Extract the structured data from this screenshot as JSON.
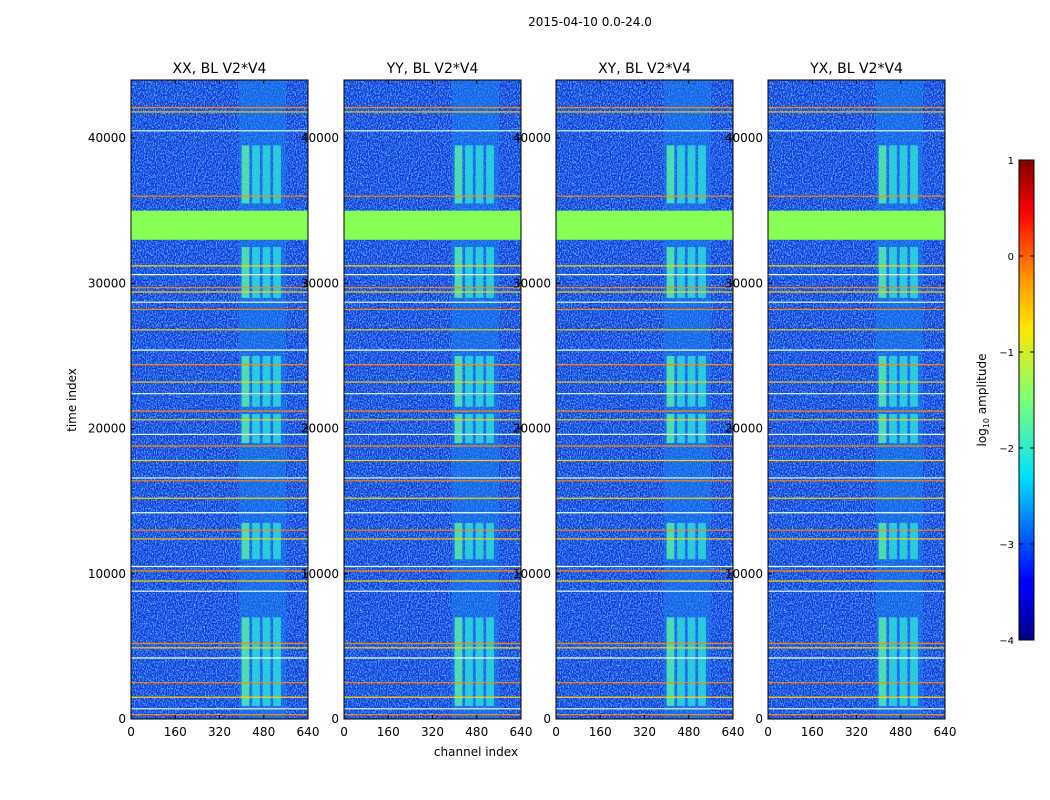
{
  "chart_data": {
    "type": "heatmap",
    "title": "2015-04-10 0.0-24.0",
    "xlabel": "channel index",
    "ylabel": "time index",
    "xlim": [
      0,
      640
    ],
    "ylim": [
      0,
      44000
    ],
    "xticks": [
      0,
      160,
      320,
      480,
      640
    ],
    "yticks": [
      0,
      10000,
      20000,
      30000,
      40000
    ],
    "xtick_labels": [
      "0",
      "160",
      "320",
      "480",
      "640"
    ],
    "ytick_labels": [
      "0",
      "10000",
      "20000",
      "30000",
      "40000"
    ],
    "panels": [
      {
        "title": "XX, BL V2*V4"
      },
      {
        "title": "YY, BL V2*V4"
      },
      {
        "title": "XY, BL V2*V4"
      },
      {
        "title": "YX, BL V2*V4"
      }
    ],
    "colorbar": {
      "label_main": "log",
      "label_sub": "10",
      "label_end": " amplitude",
      "range": [
        -4,
        1
      ],
      "ticks": [
        1,
        0,
        -1,
        -2,
        -3,
        -4
      ],
      "tick_labels": [
        "1",
        "0",
        "−1",
        "−2",
        "−3",
        "−4"
      ],
      "colormap": "jet"
    },
    "features": {
      "saturated_block_time": [
        33000,
        35000
      ],
      "bright_channel_range": [
        390,
        560
      ],
      "flagged_rows": [
        300,
        700,
        1500,
        2500,
        4200,
        4900,
        5200,
        8800,
        9500,
        10200,
        10500,
        12400,
        13000,
        14200,
        15200,
        16400,
        16600,
        17800,
        18800,
        19600,
        20600,
        21200,
        22400,
        23200,
        24400,
        25400,
        26800,
        28200,
        28700,
        29400,
        29700,
        30600,
        31200,
        36000,
        40500,
        41800,
        42100
      ]
    }
  }
}
